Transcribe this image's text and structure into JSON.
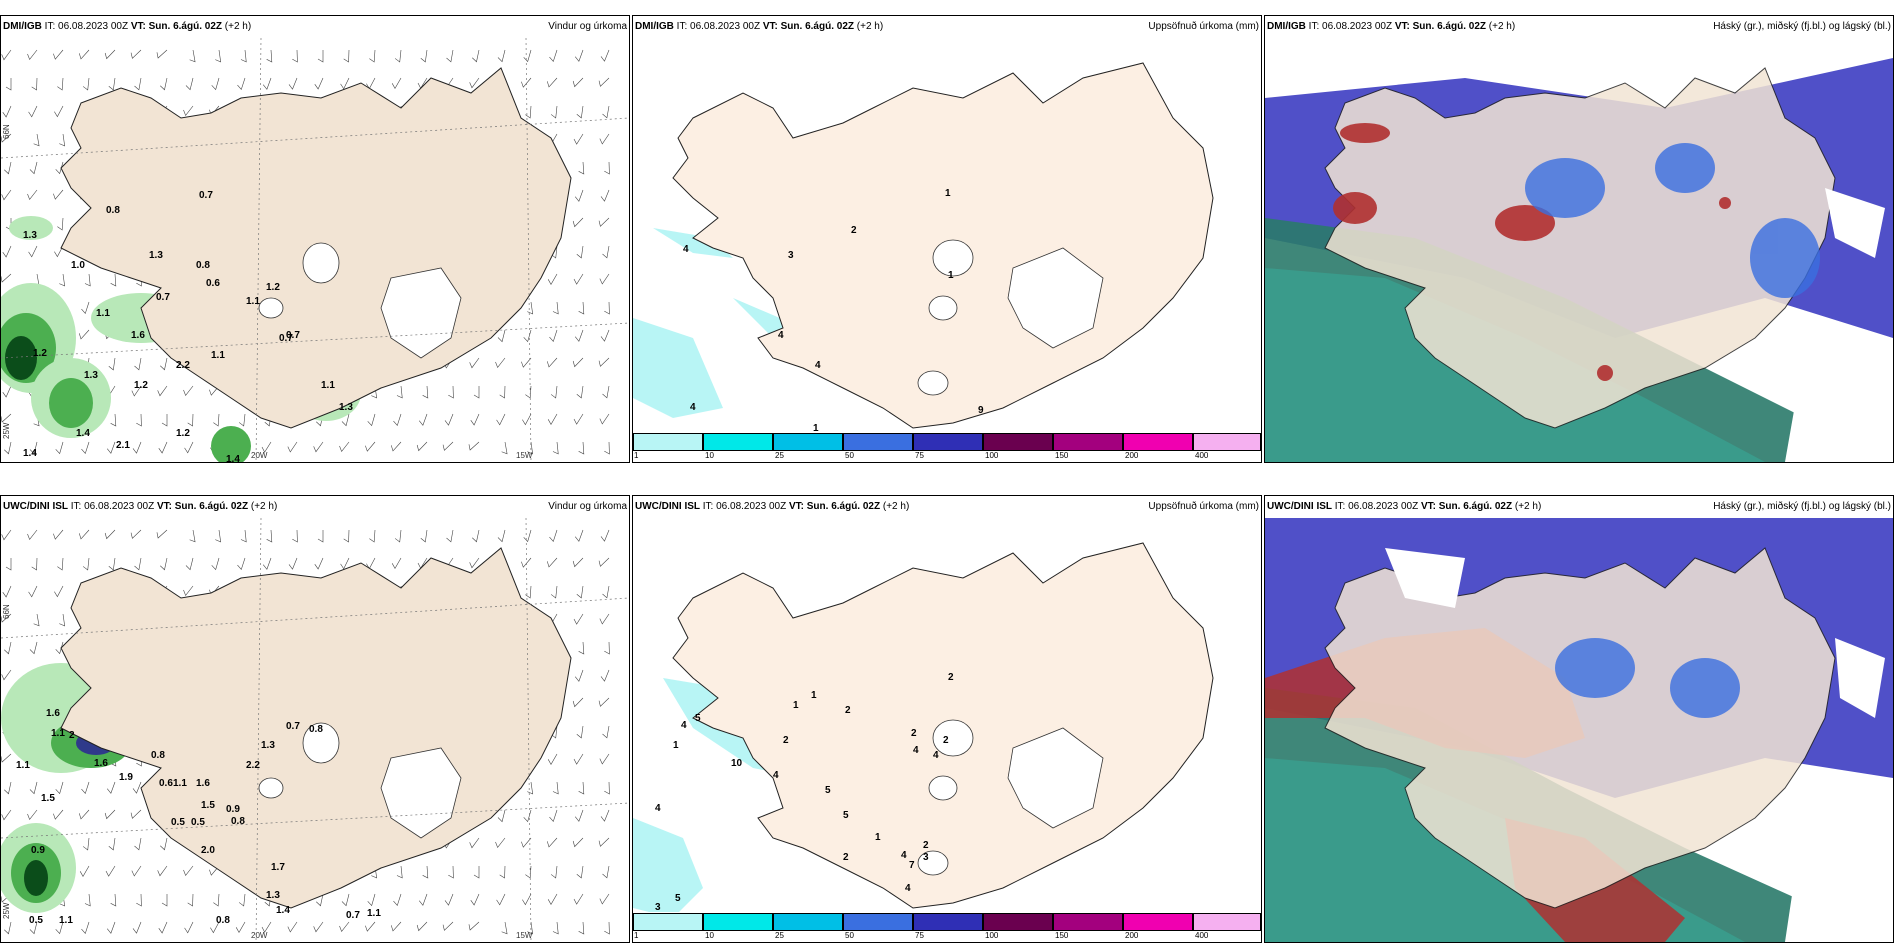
{
  "rows": [
    {
      "model": "DMI/IGB",
      "it": "IT: 06.08.2023 00Z",
      "vt_label": "VT:",
      "vt": "Sun. 6.ágú. 02Z",
      "lead": "(+2 h)"
    },
    {
      "model": "UWC/DINI ISL",
      "it": "IT: 06.08.2023 00Z",
      "vt_label": "VT:",
      "vt": "Sun. 6.ágú. 02Z",
      "lead": "(+2 h)"
    }
  ],
  "panel_titles": {
    "wind": "Vindur og úrkoma",
    "accum": "Uppsöfnuð úrkoma (mm)",
    "cloud": "Háský (gr.), miðský (fj.bl.) og lágský (bl.)"
  },
  "axis_labels": {
    "lat66": "66N",
    "lat65": "65N",
    "lon20": "20W",
    "lon15": "15W",
    "lon25": "25W"
  },
  "colorbar": {
    "ticks": [
      "1",
      "10",
      "25",
      "50",
      "75",
      "100",
      "150",
      "200",
      "400"
    ],
    "colors": [
      "#b8f5f5",
      "#00e8e8",
      "#00bfe6",
      "#3a6fe0",
      "#2f2fb5",
      "#6a004f",
      "#a3007e",
      "#f000b0",
      "#f5b0f0"
    ]
  },
  "precip_labels": {
    "dmi": [
      "0.8",
      "0.7",
      "1.3",
      "1.0",
      "1.3",
      "0.8",
      "0.6",
      "1.2",
      "1.1",
      "0.7",
      "1.1",
      "0.7",
      "1.6",
      "1.2",
      "1.3",
      "2.2",
      "1.2",
      "1.1",
      "0.7",
      "1.1",
      "1.3",
      "1.2",
      "2.1",
      "1.4",
      "1.4",
      "1.4"
    ],
    "uwc": [
      "1.6",
      "1.1",
      "2",
      "1.6",
      "1.9",
      "0.8",
      "2.2",
      "0.6",
      "1.1",
      "1.6",
      "1.5",
      "0.9",
      "0.5",
      "0.5",
      "0.8",
      "2.0",
      "1.3",
      "1.7",
      "0.9",
      "1.1",
      "0.5",
      "1.1",
      "0.8",
      "0.7",
      "1.3",
      "0.7",
      "0.8",
      "1.1",
      "1.5",
      "1.4"
    ]
  },
  "accum_labels": {
    "dmi": [
      "1",
      "2",
      "4",
      "3",
      "1",
      "4",
      "4",
      "4",
      "9",
      "1"
    ],
    "uwc": [
      "2",
      "4",
      "1",
      "5",
      "1",
      "2",
      "10",
      "1",
      "2",
      "2",
      "4",
      "2",
      "4",
      "4",
      "5",
      "4",
      "5",
      "1",
      "2",
      "7",
      "4",
      "3",
      "5",
      "6",
      "4",
      "3",
      "2"
    ]
  },
  "colors": {
    "land": "#f2e4d4",
    "land_accum": "#fcefe3",
    "precip_light": "#b8e8b8",
    "precip_mid": "#4caf50",
    "precip_dark": "#0b4d1a",
    "accum_cyan": "#b8f5f5",
    "cloud_high": "#5050c8",
    "cloud_mid": "#b03030",
    "cloud_low": "#2a7a6a"
  }
}
